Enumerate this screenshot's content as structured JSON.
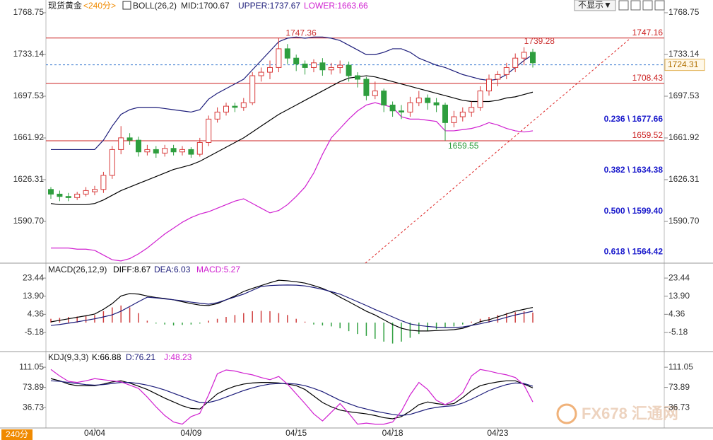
{
  "header": {
    "symbol": "现货黄金",
    "period": "<240分>",
    "indicator": "BOLL(26,2)",
    "mid": "MID:1700.67",
    "upper": "UPPER:1737.67",
    "lower": "LOWER:1663.66"
  },
  "toolbar": {
    "dropdown": "不显示▼"
  },
  "footer": {
    "period": "240分",
    "watermark": "FX678 汇通网"
  },
  "chart_data": [
    {
      "type": "candlestick",
      "categories": [
        null,
        null,
        null,
        null,
        null,
        "04/04",
        null,
        null,
        null,
        null,
        null,
        null,
        null,
        null,
        null,
        null,
        "04/09",
        null,
        null,
        null,
        null,
        null,
        null,
        null,
        null,
        null,
        null,
        null,
        "04/15",
        null,
        null,
        null,
        null,
        null,
        null,
        null,
        null,
        null,
        null,
        "04/18",
        null,
        null,
        null,
        null,
        null,
        null,
        null,
        null,
        null,
        null,
        null,
        "04/23",
        null,
        null,
        null,
        null
      ],
      "open": [
        1618,
        1614,
        1612,
        1611,
        1614,
        1616,
        1618,
        1630,
        1652,
        1662,
        1660,
        1650,
        1652,
        1649,
        1653,
        1650,
        1652,
        1648,
        1658,
        1678,
        1684,
        1689,
        1688,
        1692,
        1715,
        1718,
        1722,
        1738,
        1730,
        1725,
        1722,
        1726,
        1720,
        1722,
        1724,
        1715,
        1712,
        1698,
        1702,
        1690,
        1685,
        1684,
        1692,
        1696,
        1692,
        1690,
        1675,
        1680,
        1684,
        1688,
        1702,
        1712,
        1716,
        1722,
        1730,
        1735
      ],
      "high": [
        1620,
        1617,
        1615,
        1616,
        1620,
        1621,
        1633,
        1655,
        1672,
        1666,
        1663,
        1656,
        1655,
        1656,
        1656,
        1655,
        1654,
        1662,
        1681,
        1688,
        1692,
        1692,
        1696,
        1718,
        1722,
        1728,
        1747.36,
        1742,
        1733,
        1728,
        1729,
        1730,
        1726,
        1728,
        1727,
        1718,
        1714,
        1710,
        1704,
        1693,
        1690,
        1697,
        1702,
        1699,
        1696,
        1692,
        1685,
        1688,
        1693,
        1706,
        1716,
        1719,
        1726,
        1734,
        1739.28,
        1738
      ],
      "low": [
        1610,
        1608,
        1608,
        1609,
        1612,
        1613,
        1615,
        1627,
        1648,
        1656,
        1646,
        1647,
        1645,
        1646,
        1647,
        1647,
        1645,
        1646,
        1655,
        1675,
        1681,
        1684,
        1685,
        1690,
        1710,
        1712,
        1718,
        1725,
        1719,
        1716,
        1718,
        1715,
        1716,
        1717,
        1710,
        1705,
        1694,
        1695,
        1684,
        1680,
        1678,
        1680,
        1689,
        1686,
        1684,
        1659.55,
        1671,
        1676,
        1680,
        1685,
        1698,
        1706,
        1712,
        1718,
        1724,
        1722
      ],
      "close": [
        1614,
        1612,
        1611,
        1614,
        1617,
        1618,
        1630,
        1652,
        1662,
        1660,
        1650,
        1652,
        1649,
        1653,
        1650,
        1652,
        1648,
        1658,
        1678,
        1684,
        1689,
        1688,
        1692,
        1715,
        1718,
        1722,
        1738,
        1730,
        1725,
        1722,
        1726,
        1720,
        1722,
        1724,
        1715,
        1712,
        1698,
        1702,
        1690,
        1685,
        1684,
        1692,
        1696,
        1692,
        1690,
        1675,
        1680,
        1684,
        1688,
        1702,
        1712,
        1716,
        1722,
        1730,
        1735,
        1726
      ],
      "up_color": "#d83a3a",
      "down_color": "#2e9e3e",
      "series": [
        {
          "color": "#1c1c7a",
          "values": [
            1652,
            1652,
            1652,
            1652,
            1652,
            1652,
            1660,
            1672,
            1682,
            1686,
            1688,
            1688,
            1688,
            1687,
            1686,
            1685,
            1684,
            1686,
            1695,
            1700,
            1704,
            1708,
            1712,
            1720,
            1728,
            1736,
            1744,
            1747,
            1748,
            1747,
            1748,
            1748,
            1747,
            1745,
            1741,
            1737,
            1733,
            1733,
            1735,
            1738,
            1738,
            1735,
            1730,
            1727,
            1724,
            1722,
            1719,
            1716,
            1714,
            1712,
            1711,
            1712,
            1716,
            1722,
            1728,
            1733
          ]
        },
        {
          "color": "#000000",
          "values": [
            1606,
            1605,
            1605,
            1605,
            1605,
            1606,
            1609,
            1613,
            1617,
            1620,
            1623,
            1626,
            1629,
            1632,
            1635,
            1637,
            1639,
            1642,
            1646,
            1650,
            1654,
            1658,
            1662,
            1667,
            1672,
            1677,
            1682,
            1686,
            1690,
            1694,
            1698,
            1702,
            1706,
            1710,
            1713,
            1714,
            1715,
            1714,
            1712,
            1710,
            1708,
            1706,
            1704,
            1702,
            1700,
            1698,
            1696,
            1694,
            1693,
            1693,
            1693,
            1694,
            1696,
            1697,
            1699,
            1701
          ]
        },
        {
          "color": "#d020d0",
          "values": [
            1568,
            1568,
            1568,
            1567,
            1567,
            1566,
            1562,
            1558,
            1557,
            1559,
            1563,
            1568,
            1574,
            1580,
            1585,
            1590,
            1594,
            1597,
            1599,
            1602,
            1605,
            1608,
            1610,
            1606,
            1602,
            1598,
            1600,
            1605,
            1612,
            1620,
            1632,
            1648,
            1662,
            1670,
            1678,
            1685,
            1690,
            1692,
            1690,
            1688,
            1680,
            1678,
            1678,
            1677,
            1676,
            1668,
            1668,
            1669,
            1670,
            1672,
            1675,
            1673,
            1670,
            1668,
            1667,
            1668
          ]
        }
      ],
      "ylim": [
        1555.1,
        1779.6
      ],
      "yticks": [
        1768.75,
        1733.14,
        1697.53,
        1661.92,
        1626.31,
        {
          "value": 1590.7,
          "label": "1590.70"
        }
      ],
      "levels": [
        {
          "value": 1747.16,
          "color": "#cc2222"
        },
        {
          "value": 1708.43,
          "color": "#cc2222"
        },
        {
          "value": 1659.52,
          "color": "#cc2222"
        }
      ],
      "current_price": 1724.31,
      "fib_levels": [
        {
          "value": 1677.66,
          "label": "0.236 \\ 1677.66"
        },
        {
          "value": 1634.38,
          "label": "0.382 \\ 1634.38"
        },
        {
          "value": 1599.4,
          "label": "0.500 \\ 1599.40"
        },
        {
          "value": 1564.42,
          "label": "0.618 \\ 1564.42"
        }
      ]
    },
    {
      "type": "macd",
      "title": "MACD(26,12,9)",
      "legend": [
        {
          "label": "DIFF:8.67",
          "color": "#000000"
        },
        {
          "label": "DEA:6.03",
          "color": "#1c1c7a"
        },
        {
          "label": "MACD:5.27",
          "color": "#d020d0"
        }
      ],
      "series": [
        {
          "color": "#000000",
          "values": [
            0.4,
            1.2,
            2,
            2.8,
            3.6,
            4.5,
            7,
            10,
            14,
            15.3,
            15,
            14,
            13.2,
            12.7,
            12,
            11,
            10,
            9.2,
            9,
            10,
            12,
            14,
            16.4,
            18,
            19.5,
            21,
            22.3,
            22,
            21.5,
            20.8,
            19.5,
            18,
            16,
            13.4,
            11,
            8.5,
            6,
            4,
            1.5,
            -1,
            -3,
            -4,
            -4.4,
            -4.4,
            -4.2,
            -4,
            -3.7,
            -3,
            -1.5,
            0.5,
            1.5,
            3,
            4.5,
            6,
            7,
            8
          ]
        },
        {
          "color": "#1c1c7a",
          "values": [
            -1.5,
            -1,
            -0.3,
            0.4,
            1.2,
            2,
            3,
            4.1,
            6,
            8.5,
            11,
            13.4,
            13,
            12.5,
            12,
            11.5,
            10.8,
            10.2,
            9.7,
            10.5,
            12,
            13.5,
            15,
            17,
            19,
            19.5,
            19.7,
            19.8,
            19.7,
            19.3,
            18.5,
            17.5,
            16.3,
            15,
            13,
            11,
            9,
            6.9,
            5,
            3,
            1,
            -0.7,
            -1.5,
            -2,
            -2.4,
            -2.6,
            -2.6,
            -2.3,
            -1.5,
            -0.6,
            0.4,
            1.5,
            2.8,
            4,
            5,
            6
          ]
        }
      ],
      "histogram": {
        "up_color": "#d04040",
        "down_color": "#30a040",
        "values": [
          2,
          2.5,
          3,
          3.2,
          3.5,
          4,
          6,
          8,
          9,
          8,
          5,
          1,
          -0.5,
          -1,
          -1.5,
          -1.2,
          -1,
          -0.5,
          1,
          2,
          3,
          4,
          5,
          6,
          6.2,
          6,
          5,
          4,
          2,
          0.5,
          -1,
          -1.5,
          -2,
          -3,
          -4.5,
          -6,
          -7,
          -8.5,
          -10,
          -11,
          -10,
          -8,
          -6,
          -4.5,
          -3.5,
          -2.5,
          -2,
          -1,
          0.5,
          2,
          3,
          4,
          5,
          5.5,
          6,
          5.3
        ]
      },
      "ylim": [
        -14.5,
        29.8
      ],
      "yticks": [
        23.44,
        {
          "value": 13.9,
          "label": "13.90"
        },
        4.36,
        -5.18
      ]
    },
    {
      "type": "kdj",
      "title": "KDJ(9,3,3)",
      "legend": [
        {
          "label": "K:66.88",
          "color": "#000000"
        },
        {
          "label": "D:76.21",
          "color": "#1c1c7a"
        },
        {
          "label": "J:48.23",
          "color": "#d020d0"
        }
      ],
      "series": [
        {
          "color": "#000000",
          "values": [
            90,
            86,
            80,
            77,
            77,
            77,
            80,
            84,
            86,
            82,
            76,
            70,
            62,
            54,
            47,
            40,
            35,
            34,
            48,
            62,
            70,
            76,
            80,
            82,
            83,
            83,
            82,
            80,
            77,
            70,
            58,
            46,
            38,
            32,
            29,
            27,
            25,
            22,
            18,
            16,
            20,
            30,
            42,
            47,
            44,
            42,
            44,
            55,
            68,
            77,
            81,
            84,
            86,
            86,
            80,
            73
          ]
        },
        {
          "color": "#1c1c7a",
          "values": [
            86,
            85,
            83,
            81,
            79,
            78,
            79,
            81,
            83,
            83,
            81,
            78,
            74,
            69,
            63,
            57,
            51,
            46,
            46,
            50,
            56,
            62,
            68,
            73,
            77,
            80,
            81,
            81,
            80,
            77,
            72,
            66,
            58,
            50,
            44,
            38,
            34,
            30,
            27,
            24,
            22,
            24,
            29,
            34,
            37,
            39,
            40,
            45,
            52,
            60,
            68,
            74,
            79,
            82,
            81,
            76
          ]
        },
        {
          "color": "#d020d0",
          "values": [
            107,
            95,
            85,
            83,
            86,
            90,
            88,
            86,
            84,
            78,
            72,
            56,
            38,
            22,
            10,
            6,
            20,
            26,
            60,
            99,
            106,
            104,
            100,
            97,
            92,
            88,
            94,
            80,
            62,
            44,
            25,
            12,
            28,
            44,
            26,
            6,
            8,
            6,
            6,
            10,
            30,
            60,
            83,
            70,
            50,
            42,
            50,
            64,
            95,
            107,
            104,
            100,
            97,
            92,
            78,
            47
          ]
        }
      ],
      "ylim": [
        -1,
        136
      ],
      "yticks": [
        111.05,
        73.89,
        36.73
      ]
    }
  ]
}
